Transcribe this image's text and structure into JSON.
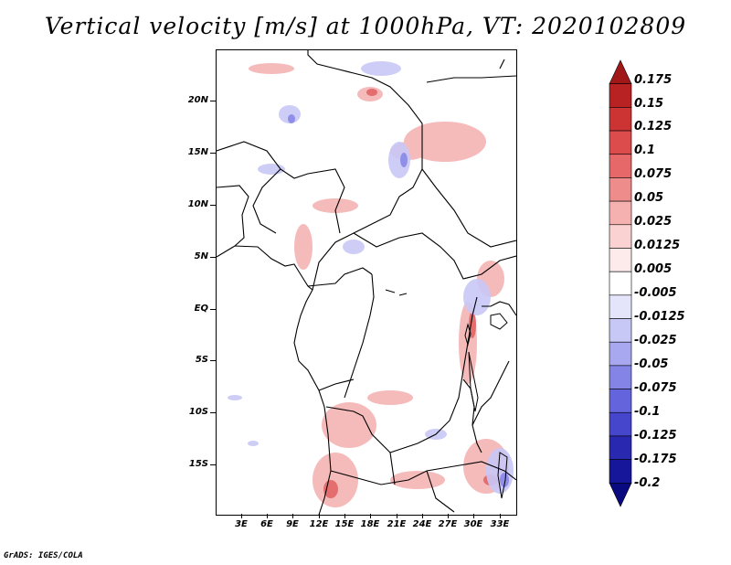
{
  "title": "Vertical velocity [m/s] at 1000hPa, VT: 2020102809",
  "footer": "GrADS: IGES/COLA",
  "y_labels": [
    "20N",
    "15N",
    "10N",
    "5N",
    "EQ",
    "5S",
    "10S",
    "15S"
  ],
  "x_labels": [
    "3E",
    "6E",
    "9E",
    "12E",
    "15E",
    "18E",
    "21E",
    "24E",
    "27E",
    "30E",
    "33E"
  ],
  "colorbar": {
    "labels": [
      "0.175",
      "0.15",
      "0.125",
      "0.1",
      "0.075",
      "0.05",
      "0.025",
      "0.0125",
      "0.005",
      "-0.005",
      "-0.0125",
      "-0.025",
      "-0.05",
      "-0.075",
      "-0.1",
      "-0.125",
      "-0.175",
      "-0.2"
    ],
    "colors": [
      "#a01818",
      "#b82222",
      "#cc3434",
      "#dc4c4c",
      "#e66868",
      "#ee8c8c",
      "#f5b0b0",
      "#fad2d2",
      "#fdeaea",
      "#ffffff",
      "#e4e4fb",
      "#c8c8f6",
      "#a8a8f0",
      "#8484e6",
      "#6464dc",
      "#4646cc",
      "#2828b0",
      "#16169a",
      "#0a0a80"
    ]
  }
}
